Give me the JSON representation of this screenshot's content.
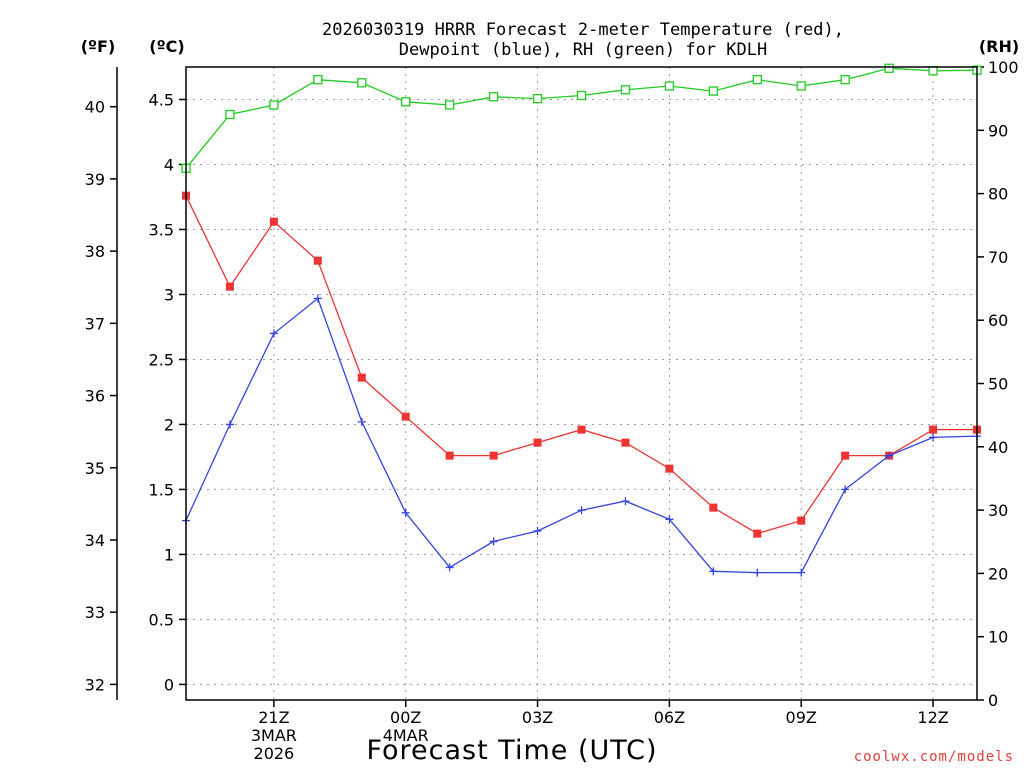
{
  "chart_data": {
    "type": "line",
    "title_line1": "2026030319 HRRR Forecast 2-meter Temperature (red),",
    "title_line2": "Dewpoint (blue), RH (green) for KDLH",
    "xlabel": "Forecast Time (UTC)",
    "left_axis_f_label": "(ºF)",
    "left_axis_c_label": "(ºC)",
    "right_axis_label": "(RH)",
    "watermark": "coolwx.com/models",
    "x_hours": [
      0,
      1,
      2,
      3,
      4,
      5,
      6,
      7,
      8,
      9,
      10,
      11,
      12,
      13,
      14,
      15,
      16,
      17,
      18
    ],
    "x_ticks": [
      {
        "hour": 2,
        "label": "21Z",
        "sub1": "3MAR",
        "sub2": "2026"
      },
      {
        "hour": 5,
        "label": "00Z",
        "sub1": "4MAR",
        "sub2": ""
      },
      {
        "hour": 8,
        "label": "03Z",
        "sub1": "",
        "sub2": ""
      },
      {
        "hour": 11,
        "label": "06Z",
        "sub1": "",
        "sub2": ""
      },
      {
        "hour": 14,
        "label": "09Z",
        "sub1": "",
        "sub2": ""
      },
      {
        "hour": 17,
        "label": "12Z",
        "sub1": "",
        "sub2": ""
      }
    ],
    "celsius_ylim": [
      -0.12,
      4.75
    ],
    "celsius_ticks": [
      "0",
      "0.5",
      "1",
      "1.5",
      "2",
      "2.5",
      "3",
      "3.5",
      "4",
      "4.5"
    ],
    "fahrenheit_ticks": [
      "32",
      "33",
      "34",
      "35",
      "36",
      "37",
      "38",
      "39",
      "40"
    ],
    "rh_ylim": [
      0,
      100
    ],
    "rh_ticks": [
      "0",
      "10",
      "20",
      "30",
      "40",
      "50",
      "60",
      "70",
      "80",
      "90",
      "100"
    ],
    "series": [
      {
        "name": "Temperature",
        "axis": "celsius",
        "color": "#ee3333",
        "marker": "filled-square",
        "values": [
          3.76,
          3.06,
          3.56,
          3.26,
          2.36,
          2.06,
          1.76,
          1.76,
          1.86,
          1.96,
          1.86,
          1.66,
          1.36,
          1.16,
          1.26,
          1.76,
          1.76,
          1.96,
          1.96
        ]
      },
      {
        "name": "Dewpoint",
        "axis": "celsius",
        "color": "#3344dd",
        "marker": "plus",
        "values": [
          1.26,
          2.0,
          2.7,
          2.97,
          2.02,
          1.32,
          0.9,
          1.1,
          1.18,
          1.34,
          1.41,
          1.27,
          0.87,
          0.86,
          0.86,
          1.5,
          1.76,
          1.9,
          1.91
        ]
      },
      {
        "name": "RH",
        "axis": "rh",
        "color": "#22cc22",
        "marker": "open-square",
        "values": [
          84,
          92.5,
          94,
          98,
          97.5,
          94.5,
          94,
          95.3,
          95,
          95.5,
          96.4,
          97,
          96.2,
          98,
          97,
          98,
          99.8,
          99.4,
          99.5
        ]
      }
    ]
  }
}
